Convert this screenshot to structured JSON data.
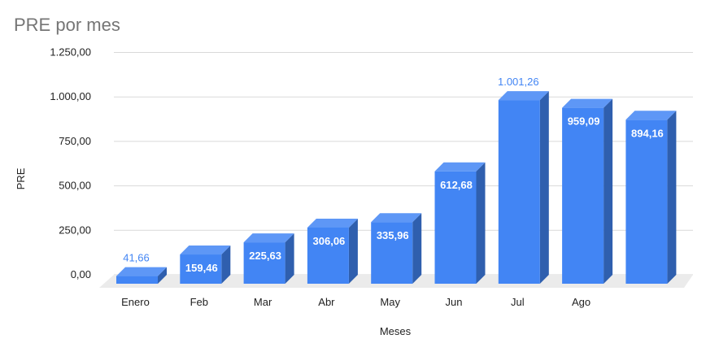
{
  "chart_data": {
    "type": "bar",
    "title": "PRE por mes",
    "xlabel": "Meses",
    "ylabel": "PRE",
    "categories": [
      "Enero",
      "Feb",
      "Mar",
      "Abr",
      "May",
      "Jun",
      "Jul",
      "Ago",
      ""
    ],
    "values": [
      41.66,
      159.46,
      225.63,
      306.06,
      335.96,
      612.68,
      1001.26,
      959.09,
      894.16
    ],
    "value_labels": [
      "41,66",
      "159,46",
      "225,63",
      "306,06",
      "335,96",
      "612,68",
      "1.001,26",
      "959,09",
      "894,16"
    ],
    "ylim": [
      0,
      1250
    ],
    "y_ticks": [
      0,
      250,
      500,
      750,
      1000,
      1250
    ],
    "y_tick_labels": [
      "0,00",
      "250,00",
      "500,00",
      "750,00",
      "1.000,00",
      "1.250,00"
    ],
    "grid": true,
    "legend": "none",
    "style": "3d",
    "colors": {
      "front": "#4285f4",
      "top": "#5e97f6",
      "side": "#2f5fae",
      "floor": "#ebebeb",
      "grid": "#d9d9d9"
    }
  }
}
